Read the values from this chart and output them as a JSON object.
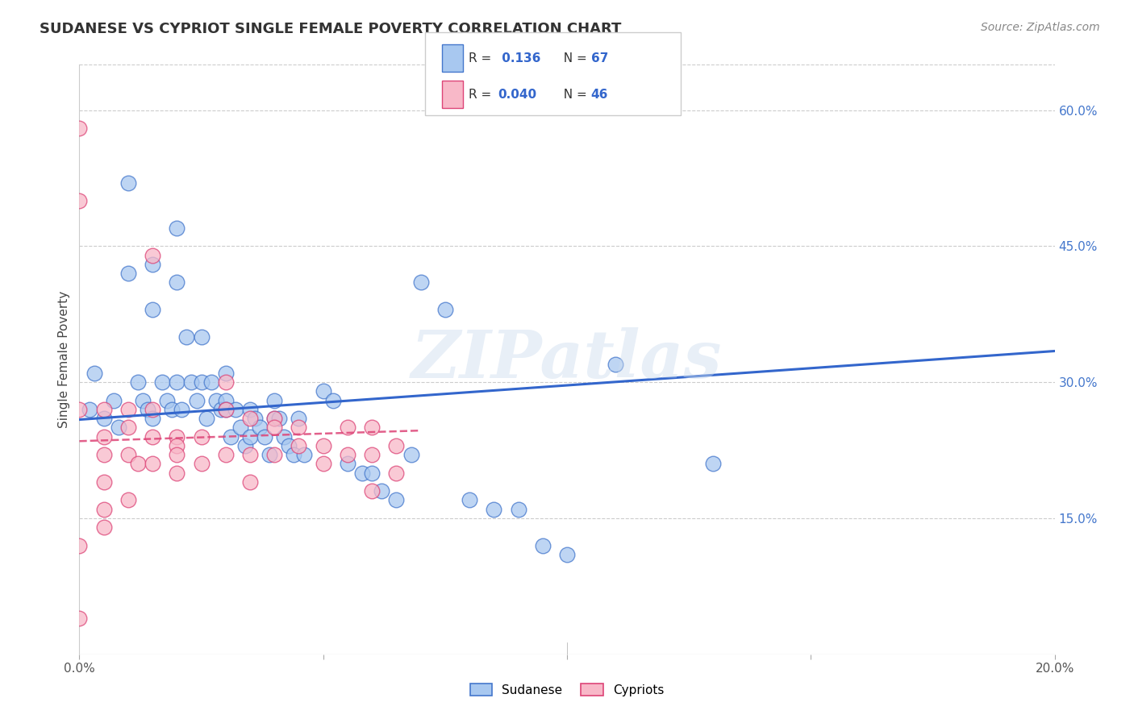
{
  "title": "SUDANESE VS CYPRIOT SINGLE FEMALE POVERTY CORRELATION CHART",
  "source": "Source: ZipAtlas.com",
  "ylabel": "Single Female Poverty",
  "xlim": [
    0.0,
    0.2
  ],
  "ylim": [
    0.0,
    0.65
  ],
  "blue_R": 0.136,
  "blue_N": 67,
  "pink_R": 0.04,
  "pink_N": 46,
  "blue_color": "#A8C8F0",
  "pink_color": "#F8B8C8",
  "blue_edge_color": "#4477CC",
  "pink_edge_color": "#DD4477",
  "blue_line_color": "#3366CC",
  "pink_line_color": "#DD4477",
  "watermark": "ZIPatlas",
  "sudanese_x": [
    0.002,
    0.003,
    0.005,
    0.007,
    0.008,
    0.01,
    0.01,
    0.012,
    0.013,
    0.014,
    0.015,
    0.015,
    0.015,
    0.017,
    0.018,
    0.019,
    0.02,
    0.02,
    0.02,
    0.021,
    0.022,
    0.023,
    0.024,
    0.025,
    0.025,
    0.026,
    0.027,
    0.028,
    0.029,
    0.03,
    0.03,
    0.03,
    0.031,
    0.032,
    0.033,
    0.034,
    0.035,
    0.035,
    0.036,
    0.037,
    0.038,
    0.039,
    0.04,
    0.04,
    0.041,
    0.042,
    0.043,
    0.044,
    0.045,
    0.046,
    0.05,
    0.052,
    0.055,
    0.058,
    0.06,
    0.062,
    0.065,
    0.068,
    0.07,
    0.075,
    0.08,
    0.085,
    0.09,
    0.095,
    0.1,
    0.11,
    0.13
  ],
  "sudanese_y": [
    0.27,
    0.31,
    0.26,
    0.28,
    0.25,
    0.52,
    0.42,
    0.3,
    0.28,
    0.27,
    0.43,
    0.38,
    0.26,
    0.3,
    0.28,
    0.27,
    0.47,
    0.41,
    0.3,
    0.27,
    0.35,
    0.3,
    0.28,
    0.35,
    0.3,
    0.26,
    0.3,
    0.28,
    0.27,
    0.31,
    0.28,
    0.27,
    0.24,
    0.27,
    0.25,
    0.23,
    0.27,
    0.24,
    0.26,
    0.25,
    0.24,
    0.22,
    0.28,
    0.26,
    0.26,
    0.24,
    0.23,
    0.22,
    0.26,
    0.22,
    0.29,
    0.28,
    0.21,
    0.2,
    0.2,
    0.18,
    0.17,
    0.22,
    0.41,
    0.38,
    0.17,
    0.16,
    0.16,
    0.12,
    0.11,
    0.32,
    0.21
  ],
  "cypriot_x": [
    0.0,
    0.0,
    0.0,
    0.0,
    0.0,
    0.005,
    0.005,
    0.005,
    0.005,
    0.005,
    0.005,
    0.01,
    0.01,
    0.01,
    0.01,
    0.012,
    0.015,
    0.015,
    0.015,
    0.015,
    0.02,
    0.02,
    0.02,
    0.02,
    0.025,
    0.025,
    0.03,
    0.03,
    0.03,
    0.035,
    0.035,
    0.035,
    0.04,
    0.04,
    0.04,
    0.045,
    0.045,
    0.05,
    0.05,
    0.055,
    0.055,
    0.06,
    0.06,
    0.06,
    0.065,
    0.065
  ],
  "cypriot_y": [
    0.58,
    0.5,
    0.27,
    0.12,
    0.04,
    0.27,
    0.24,
    0.22,
    0.19,
    0.16,
    0.14,
    0.27,
    0.25,
    0.22,
    0.17,
    0.21,
    0.44,
    0.27,
    0.24,
    0.21,
    0.24,
    0.23,
    0.22,
    0.2,
    0.24,
    0.21,
    0.3,
    0.27,
    0.22,
    0.26,
    0.22,
    0.19,
    0.26,
    0.25,
    0.22,
    0.25,
    0.23,
    0.23,
    0.21,
    0.25,
    0.22,
    0.25,
    0.22,
    0.18,
    0.23,
    0.2
  ]
}
